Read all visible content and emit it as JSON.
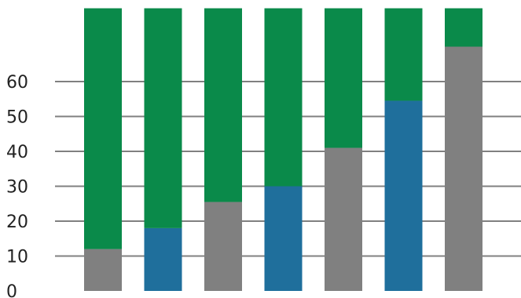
{
  "chart_data": {
    "type": "bar",
    "stacked": true,
    "title": "",
    "xlabel": "",
    "ylabel": "",
    "categories": [
      "",
      "",
      "",
      "",
      "",
      "",
      ""
    ],
    "y_ticks": [
      "0",
      "10",
      "20",
      "30",
      "40",
      "50",
      "60"
    ],
    "ylim": [
      0,
      81
    ],
    "grid": true,
    "series": [
      {
        "color": "#808080",
        "values": [
          12,
          0,
          25.5,
          0,
          41,
          0,
          70
        ]
      },
      {
        "color": "#1f6f9c",
        "values": [
          0,
          18,
          0,
          30,
          0,
          54.5,
          0
        ]
      },
      {
        "color": "#0a8a4a",
        "values": [
          69,
          63,
          55.5,
          51,
          40,
          26.5,
          11
        ]
      }
    ],
    "colors": {
      "grid": "#808080",
      "background": "#ffffff"
    }
  }
}
